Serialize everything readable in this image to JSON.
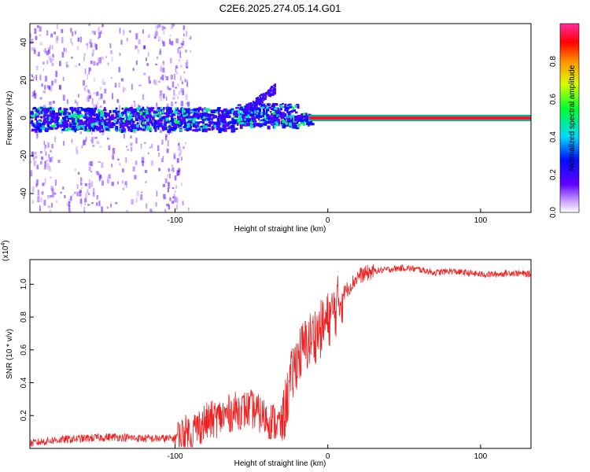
{
  "figure_title": "C2E6.2025.274.05.14.G01",
  "colorbar": {
    "label": "Normalized spectral amplitude",
    "ticks": [
      "0.0",
      "0.2",
      "0.4",
      "0.6",
      "0.8"
    ],
    "range": [
      0,
      1
    ]
  },
  "colors": {
    "snr_line": "#ee2222",
    "frame": "#000000"
  },
  "chart_data": [
    {
      "type": "heatmap",
      "title": "C2E6.2025.274.05.14.G01",
      "xlabel": "Height of straight line (km)",
      "ylabel": "Frequency (Hz)",
      "xlim": [
        -195,
        133
      ],
      "ylim": [
        -50,
        50
      ],
      "x_ticks": [
        "-100",
        "0",
        "100"
      ],
      "y_ticks": [
        "-40",
        "-20",
        "0",
        "20",
        "40"
      ],
      "features": {
        "strong_tone": {
          "x_start": -12,
          "x_end": 133,
          "frequency": 0,
          "amplitude": 1.0
        },
        "noisy_band": {
          "x_start": -195,
          "x_end": -10,
          "frequency_halfwidth": 6,
          "amplitude": 0.35
        },
        "side_lobe": {
          "x_start": -55,
          "x_end": -35,
          "frequency_from": 4,
          "frequency_to": 16,
          "amplitude": 0.25
        }
      }
    },
    {
      "type": "line",
      "xlabel": "Height of straight line (km)",
      "ylabel": "SNR (10 * v/v)",
      "scale_label": "(x10",
      "scale_exponent": "4",
      "xlim": [
        -195,
        133
      ],
      "ylim": [
        0,
        1.15
      ],
      "x_ticks": [
        "-100",
        "0",
        "100"
      ],
      "y_ticks": [
        "0.2",
        "0.4",
        "0.6",
        "0.8",
        "1.0"
      ],
      "series": [
        {
          "name": "SNR",
          "x": [
            -195,
            -180,
            -160,
            -140,
            -120,
            -100,
            -90,
            -80,
            -70,
            -60,
            -50,
            -40,
            -30,
            -25,
            -20,
            -15,
            -10,
            -5,
            0,
            5,
            10,
            20,
            30,
            40,
            50,
            60,
            70,
            80,
            90,
            100,
            110,
            120,
            133
          ],
          "y": [
            0.03,
            0.05,
            0.06,
            0.07,
            0.06,
            0.06,
            0.1,
            0.16,
            0.19,
            0.23,
            0.24,
            0.18,
            0.14,
            0.38,
            0.55,
            0.62,
            0.68,
            0.72,
            0.78,
            0.85,
            0.94,
            1.05,
            1.08,
            1.09,
            1.1,
            1.09,
            1.07,
            1.08,
            1.07,
            1.06,
            1.06,
            1.07,
            1.06
          ]
        }
      ]
    }
  ]
}
